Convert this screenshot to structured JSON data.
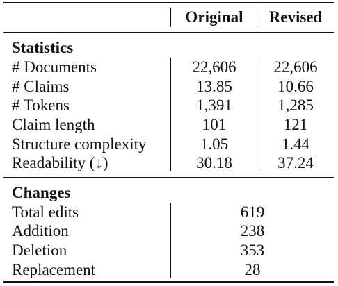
{
  "header": {
    "original": "Original",
    "revised": "Revised"
  },
  "statistics": {
    "title": "Statistics",
    "rows": [
      {
        "label": "# Documents",
        "original": "22,606",
        "revised": "22,606"
      },
      {
        "label": "# Claims",
        "original": "13.85",
        "revised": "10.66"
      },
      {
        "label": "# Tokens",
        "original": "1,391",
        "revised": "1,285"
      },
      {
        "label": "Claim length",
        "original": "101",
        "revised": "121"
      },
      {
        "label": "Structure complexity",
        "original": "1.05",
        "revised": "1.44"
      },
      {
        "label": "Readability (↓)",
        "original": "30.18",
        "revised": "37.24"
      }
    ]
  },
  "changes": {
    "title": "Changes",
    "rows": [
      {
        "label": "Total edits",
        "value": "619"
      },
      {
        "label": "Addition",
        "value": "238"
      },
      {
        "label": "Deletion",
        "value": "353"
      },
      {
        "label": "Replacement",
        "value": "28"
      }
    ]
  }
}
